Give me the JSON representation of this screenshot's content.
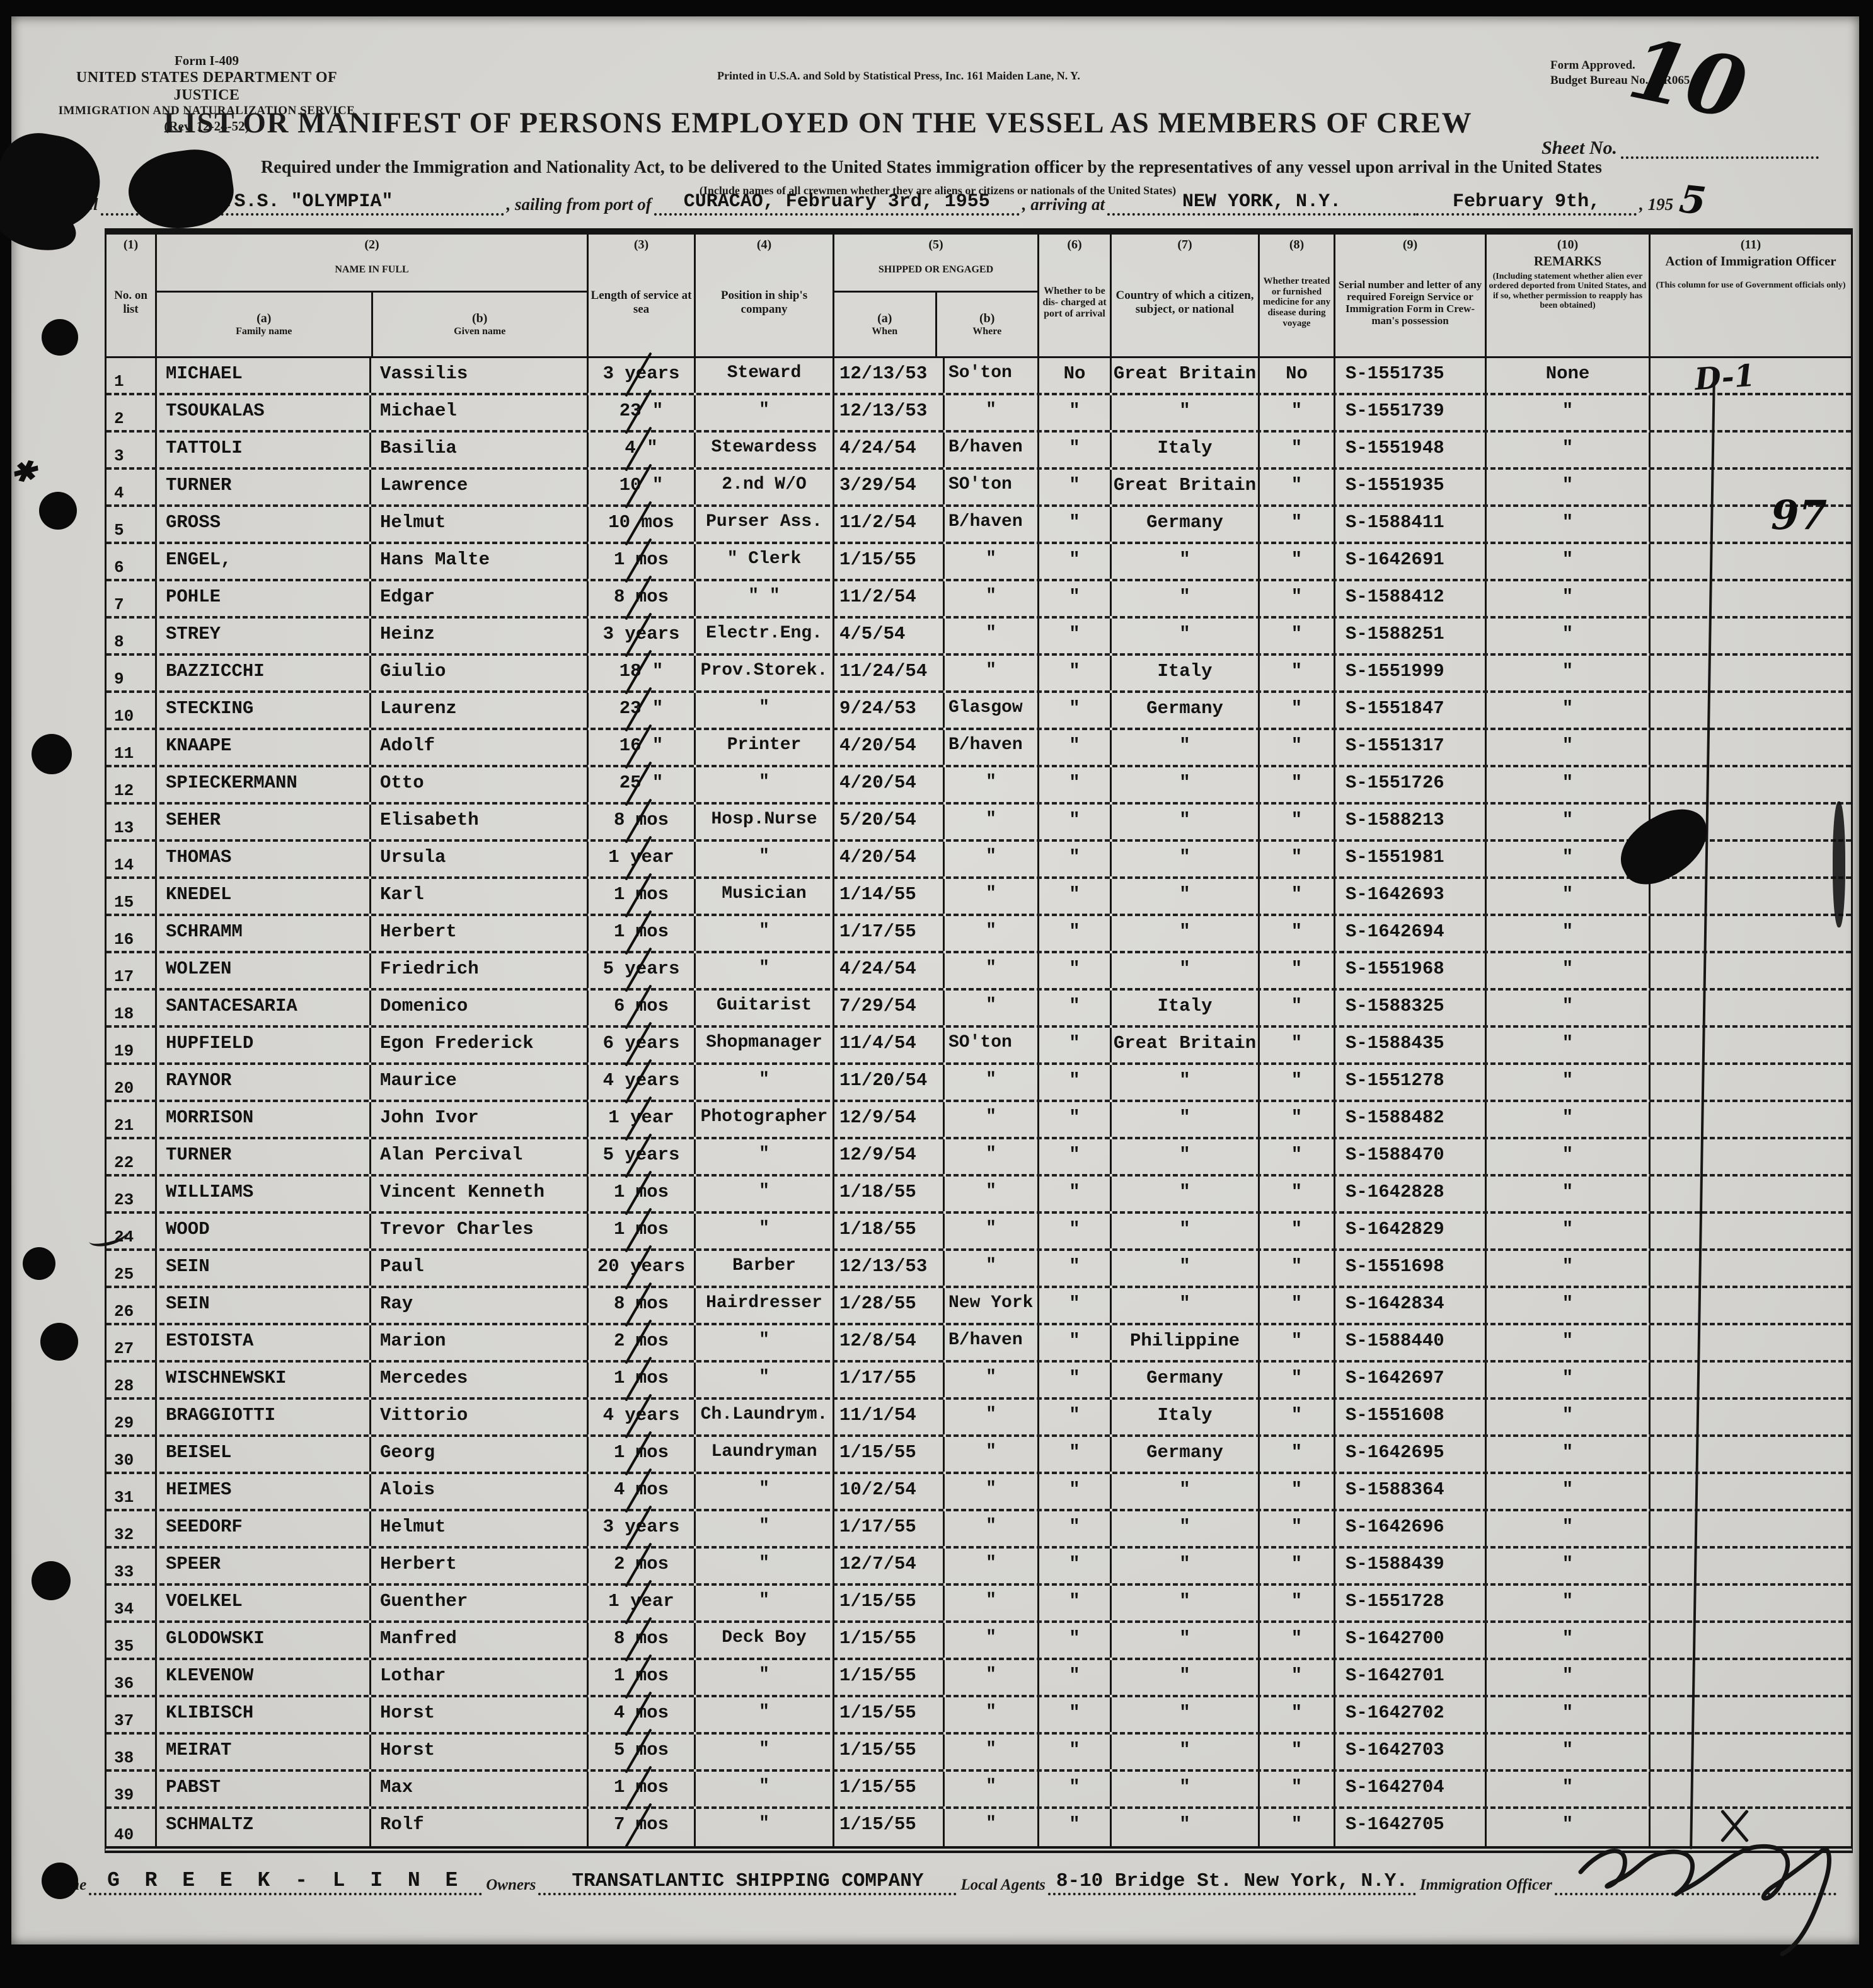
{
  "form": {
    "form_number": "Form I-409",
    "agency_line1": "UNITED STATES DEPARTMENT OF JUSTICE",
    "agency_line2": "IMMIGRATION AND NATURALIZATION SERVICE",
    "revision": "(Rev. 12-24-52)",
    "printer_note": "Printed in U.S.A. and Sold by Statistical Press, Inc. 161 Maiden Lane, N. Y.",
    "approval_line1": "Form Approved.",
    "approval_line2": "Budget Bureau No. —R065.5.",
    "title": "LIST OR MANIFEST OF PERSONS EMPLOYED ON THE VESSEL AS MEMBERS OF CREW",
    "sheet_label": "Sheet No.",
    "sheet_number": "10",
    "subtitle": "Required under the Immigration and Nationality Act, to be delivered to the United States immigration officer by the representatives of any vessel upon arrival in the United States",
    "subtitle2": "(Include names of all crewmen whether they are aliens or citizens or nationals of the United States)",
    "vessel_label": "Vessel",
    "vessel_name": "T.S.S.  \"OLYMPIA\"",
    "sailing_label": ", sailing from port of",
    "sailing_value": "CURACAO, February 3rd, 1955",
    "arriving_label": ", arriving at",
    "arriving_port": "NEW YORK,  N.Y.",
    "arriving_date": "February 9th,",
    "arriving_year_prefix": ", 195",
    "arriving_year_suffix": "5"
  },
  "table": {
    "headers": {
      "c1n": "(1)",
      "c1": "No. on list",
      "c2n": "(2)",
      "c2": "NAME IN FULL",
      "c2an": "(a)",
      "c2a": "Family name",
      "c2bn": "(b)",
      "c2b": "Given name",
      "c3n": "(3)",
      "c3": "Length of service at sea",
      "c4n": "(4)",
      "c4": "Position in ship's company",
      "c5n": "(5)",
      "c5": "SHIPPED OR ENGAGED",
      "c5an": "(a)",
      "c5a": "When",
      "c5bn": "(b)",
      "c5b": "Where",
      "c6n": "(6)",
      "c6": "Whether to be dis- charged at port of arrival",
      "c7n": "(7)",
      "c7": "Country of which a citizen, subject, or national",
      "c8n": "(8)",
      "c8": "Whether treated or furnished medicine for any disease during voyage",
      "c9n": "(9)",
      "c9": "Serial number and letter of any required Foreign Service or Immigration Form in Crew- man's possession",
      "c10n": "(10)",
      "c10": "REMARKS",
      "c10note": "(Including statement whether alien ever ordered deported from United States, and if so, whether permission to reapply has been obtained)",
      "c11n": "(11)",
      "c11": "Action of Immigration Officer",
      "c11note": "(This column for use of Government officials only)"
    },
    "rows": [
      {
        "no": "1",
        "family": "MICHAEL",
        "given": "Vassilis",
        "length": "3 years",
        "position": "Steward",
        "when": "12/13/53",
        "where": "So'ton",
        "discharged": "No",
        "country": "Great Britain",
        "medicine": "No",
        "serial": "S-1551735",
        "remarks": "None",
        "action": "D-1"
      },
      {
        "no": "2",
        "family": "TSOUKALAS",
        "given": "Michael",
        "length": "23 \"",
        "position": "\"",
        "when": "12/13/53",
        "where": "\"",
        "discharged": "\"",
        "country": "\"",
        "medicine": "\"",
        "serial": "S-1551739",
        "remarks": "\"",
        "action": ""
      },
      {
        "no": "3",
        "family": "TATTOLI",
        "given": "Basilia",
        "length": "4 \"",
        "position": "Stewardess",
        "when": "4/24/54",
        "where": "B/haven",
        "discharged": "\"",
        "country": "Italy",
        "medicine": "\"",
        "serial": "S-1551948",
        "remarks": "\"",
        "action": ""
      },
      {
        "no": "4",
        "family": "TURNER",
        "given": "Lawrence",
        "length": "10 \"",
        "position": "2.nd W/O",
        "when": "3/29/54",
        "where": "SO'ton",
        "discharged": "\"",
        "country": "Great Britain",
        "medicine": "\"",
        "serial": "S-1551935",
        "remarks": "\"",
        "action": ""
      },
      {
        "no": "5",
        "family": "GROSS",
        "given": "Helmut",
        "length": "10 mos",
        "position": "Purser Ass.",
        "when": "11/2/54",
        "where": "B/haven",
        "discharged": "\"",
        "country": "Germany",
        "medicine": "\"",
        "serial": "S-1588411",
        "remarks": "\"",
        "action": ""
      },
      {
        "no": "6",
        "family": "ENGEL,",
        "given": "Hans Malte",
        "length": "1 mos",
        "position": "\" Clerk",
        "when": "1/15/55",
        "where": "\"",
        "discharged": "\"",
        "country": "\"",
        "medicine": "\"",
        "serial": "S-1642691",
        "remarks": "\"",
        "action": ""
      },
      {
        "no": "7",
        "family": "POHLE",
        "given": "Edgar",
        "length": "8 mos",
        "position": "\"  \"",
        "when": "11/2/54",
        "where": "\"",
        "discharged": "\"",
        "country": "\"",
        "medicine": "\"",
        "serial": "S-1588412",
        "remarks": "\"",
        "action": ""
      },
      {
        "no": "8",
        "family": "STREY",
        "given": "Heinz",
        "length": "3 years",
        "position": "Electr.Eng.",
        "when": "4/5/54",
        "where": "\"",
        "discharged": "\"",
        "country": "\"",
        "medicine": "\"",
        "serial": "S-1588251",
        "remarks": "\"",
        "action": ""
      },
      {
        "no": "9",
        "family": "BAZZICCHI",
        "given": "Giulio",
        "length": "18 \"",
        "position": "Prov.Storek.",
        "when": "11/24/54",
        "where": "\"",
        "discharged": "\"",
        "country": "Italy",
        "medicine": "\"",
        "serial": "S-1551999",
        "remarks": "\"",
        "action": ""
      },
      {
        "no": "10",
        "family": "STECKING",
        "given": "Laurenz",
        "length": "23 \"",
        "position": "\"",
        "when": "9/24/53",
        "where": "Glasgow",
        "discharged": "\"",
        "country": "Germany",
        "medicine": "\"",
        "serial": "S-1551847",
        "remarks": "\"",
        "action": ""
      },
      {
        "no": "11",
        "family": "KNAAPE",
        "given": "Adolf",
        "length": "16 \"",
        "position": "Printer",
        "when": "4/20/54",
        "where": "B/haven",
        "discharged": "\"",
        "country": "\"",
        "medicine": "\"",
        "serial": "S-1551317",
        "remarks": "\"",
        "action": ""
      },
      {
        "no": "12",
        "family": "SPIECKERMANN",
        "given": "Otto",
        "length": "25 \"",
        "position": "\"",
        "when": "4/20/54",
        "where": "\"",
        "discharged": "\"",
        "country": "\"",
        "medicine": "\"",
        "serial": "S-1551726",
        "remarks": "\"",
        "action": ""
      },
      {
        "no": "13",
        "family": "SEHER",
        "given": "Elisabeth",
        "length": "8 mos",
        "position": "Hosp.Nurse",
        "when": "5/20/54",
        "where": "\"",
        "discharged": "\"",
        "country": "\"",
        "medicine": "\"",
        "serial": "S-1588213",
        "remarks": "\"",
        "action": ""
      },
      {
        "no": "14",
        "family": "THOMAS",
        "given": "Ursula",
        "length": "1 year",
        "position": "\"",
        "when": "4/20/54",
        "where": "\"",
        "discharged": "\"",
        "country": "\"",
        "medicine": "\"",
        "serial": "S-1551981",
        "remarks": "\"",
        "action": ""
      },
      {
        "no": "15",
        "family": "KNEDEL",
        "given": "Karl",
        "length": "1 mos",
        "position": "Musician",
        "when": "1/14/55",
        "where": "\"",
        "discharged": "\"",
        "country": "\"",
        "medicine": "\"",
        "serial": "S-1642693",
        "remarks": "\"",
        "action": ""
      },
      {
        "no": "16",
        "family": "SCHRAMM",
        "given": "Herbert",
        "length": "1 mos",
        "position": "\"",
        "when": "1/17/55",
        "where": "\"",
        "discharged": "\"",
        "country": "\"",
        "medicine": "\"",
        "serial": "S-1642694",
        "remarks": "\"",
        "action": ""
      },
      {
        "no": "17",
        "family": "WOLZEN",
        "given": "Friedrich",
        "length": "5 years",
        "position": "\"",
        "when": "4/24/54",
        "where": "\"",
        "discharged": "\"",
        "country": "\"",
        "medicine": "\"",
        "serial": "S-1551968",
        "remarks": "\"",
        "action": ""
      },
      {
        "no": "18",
        "family": "SANTACESARIA",
        "given": "Domenico",
        "length": "6 mos",
        "position": "Guitarist",
        "when": "7/29/54",
        "where": "\"",
        "discharged": "\"",
        "country": "Italy",
        "medicine": "\"",
        "serial": "S-1588325",
        "remarks": "\"",
        "action": ""
      },
      {
        "no": "19",
        "family": "HUPFIELD",
        "given": "Egon Frederick",
        "length": "6 years",
        "position": "Shopmanager",
        "when": "11/4/54",
        "where": "SO'ton",
        "discharged": "\"",
        "country": "Great Britain",
        "medicine": "\"",
        "serial": "S-1588435",
        "remarks": "\"",
        "action": ""
      },
      {
        "no": "20",
        "family": "RAYNOR",
        "given": "Maurice",
        "length": "4 years",
        "position": "\"",
        "when": "11/20/54",
        "where": "\"",
        "discharged": "\"",
        "country": "\"",
        "medicine": "\"",
        "serial": "S-1551278",
        "remarks": "\"",
        "action": ""
      },
      {
        "no": "21",
        "family": "MORRISON",
        "given": "John Ivor",
        "length": "1 year",
        "position": "Photographer",
        "when": "12/9/54",
        "where": "\"",
        "discharged": "\"",
        "country": "\"",
        "medicine": "\"",
        "serial": "S-1588482",
        "remarks": "\"",
        "action": ""
      },
      {
        "no": "22",
        "family": "TURNER",
        "given": "Alan Percival",
        "length": "5 years",
        "position": "\"",
        "when": "12/9/54",
        "where": "\"",
        "discharged": "\"",
        "country": "\"",
        "medicine": "\"",
        "serial": "S-1588470",
        "remarks": "\"",
        "action": ""
      },
      {
        "no": "23",
        "family": "WILLIAMS",
        "given": "Vincent Kenneth",
        "length": "1 mos",
        "position": "\"",
        "when": "1/18/55",
        "where": "\"",
        "discharged": "\"",
        "country": "\"",
        "medicine": "\"",
        "serial": "S-1642828",
        "remarks": "\"",
        "action": ""
      },
      {
        "no": "24",
        "family": "WOOD",
        "given": "Trevor Charles",
        "length": "1 mos",
        "position": "\"",
        "when": "1/18/55",
        "where": "\"",
        "discharged": "\"",
        "country": "\"",
        "medicine": "\"",
        "serial": "S-1642829",
        "remarks": "\"",
        "action": ""
      },
      {
        "no": "25",
        "family": "SEIN",
        "given": "Paul",
        "length": "20 years",
        "position": "Barber",
        "when": "12/13/53",
        "where": "\"",
        "discharged": "\"",
        "country": "\"",
        "medicine": "\"",
        "serial": "S-1551698",
        "remarks": "\"",
        "action": ""
      },
      {
        "no": "26",
        "family": "SEIN",
        "given": "Ray",
        "length": "8 mos",
        "position": "Hairdresser",
        "when": "1/28/55",
        "where": "New York",
        "discharged": "\"",
        "country": "\"",
        "medicine": "\"",
        "serial": "S-1642834",
        "remarks": "\"",
        "action": ""
      },
      {
        "no": "27",
        "family": "ESTOISTA",
        "given": "Marion",
        "length": "2 mos",
        "position": "\"",
        "when": "12/8/54",
        "where": "B/haven",
        "discharged": "\"",
        "country": "Philippine",
        "medicine": "\"",
        "serial": "S-1588440",
        "remarks": "\"",
        "action": ""
      },
      {
        "no": "28",
        "family": "WISCHNEWSKI",
        "given": "Mercedes",
        "length": "1 mos",
        "position": "\"",
        "when": "1/17/55",
        "where": "\"",
        "discharged": "\"",
        "country": "Germany",
        "medicine": "\"",
        "serial": "S-1642697",
        "remarks": "\"",
        "action": ""
      },
      {
        "no": "29",
        "family": "BRAGGIOTTI",
        "given": "Vittorio",
        "length": "4 years",
        "position": "Ch.Laundrym.",
        "when": "11/1/54",
        "where": "\"",
        "discharged": "\"",
        "country": "Italy",
        "medicine": "\"",
        "serial": "S-1551608",
        "remarks": "\"",
        "action": ""
      },
      {
        "no": "30",
        "family": "BEISEL",
        "given": "Georg",
        "length": "1 mos",
        "position": "Laundryman",
        "when": "1/15/55",
        "where": "\"",
        "discharged": "\"",
        "country": "Germany",
        "medicine": "\"",
        "serial": "S-1642695",
        "remarks": "\"",
        "action": ""
      },
      {
        "no": "31",
        "family": "HEIMES",
        "given": "Alois",
        "length": "4 mos",
        "position": "\"",
        "when": "10/2/54",
        "where": "\"",
        "discharged": "\"",
        "country": "\"",
        "medicine": "\"",
        "serial": "S-1588364",
        "remarks": "\"",
        "action": ""
      },
      {
        "no": "32",
        "family": "SEEDORF",
        "given": "Helmut",
        "length": "3 years",
        "position": "\"",
        "when": "1/17/55",
        "where": "\"",
        "discharged": "\"",
        "country": "\"",
        "medicine": "\"",
        "serial": "S-1642696",
        "remarks": "\"",
        "action": ""
      },
      {
        "no": "33",
        "family": "SPEER",
        "given": "Herbert",
        "length": "2 mos",
        "position": "\"",
        "when": "12/7/54",
        "where": "\"",
        "discharged": "\"",
        "country": "\"",
        "medicine": "\"",
        "serial": "S-1588439",
        "remarks": "\"",
        "action": ""
      },
      {
        "no": "34",
        "family": "VOELKEL",
        "given": "Guenther",
        "length": "1 year",
        "position": "\"",
        "when": "1/15/55",
        "where": "\"",
        "discharged": "\"",
        "country": "\"",
        "medicine": "\"",
        "serial": "S-1551728",
        "remarks": "\"",
        "action": ""
      },
      {
        "no": "35",
        "family": "GLODOWSKI",
        "given": "Manfred",
        "length": "8 mos",
        "position": "Deck Boy",
        "when": "1/15/55",
        "where": "\"",
        "discharged": "\"",
        "country": "\"",
        "medicine": "\"",
        "serial": "S-1642700",
        "remarks": "\"",
        "action": ""
      },
      {
        "no": "36",
        "family": "KLEVENOW",
        "given": "Lothar",
        "length": "1 mos",
        "position": "\"",
        "when": "1/15/55",
        "where": "\"",
        "discharged": "\"",
        "country": "\"",
        "medicine": "\"",
        "serial": "S-1642701",
        "remarks": "\"",
        "action": ""
      },
      {
        "no": "37",
        "family": "KLIBISCH",
        "given": "Horst",
        "length": "4 mos",
        "position": "\"",
        "when": "1/15/55",
        "where": "\"",
        "discharged": "\"",
        "country": "\"",
        "medicine": "\"",
        "serial": "S-1642702",
        "remarks": "\"",
        "action": ""
      },
      {
        "no": "38",
        "family": "MEIRAT",
        "given": "Horst",
        "length": "5 mos",
        "position": "\"",
        "when": "1/15/55",
        "where": "\"",
        "discharged": "\"",
        "country": "\"",
        "medicine": "\"",
        "serial": "S-1642703",
        "remarks": "\"",
        "action": ""
      },
      {
        "no": "39",
        "family": "PABST",
        "given": "Max",
        "length": "1 mos",
        "position": "\"",
        "when": "1/15/55",
        "where": "\"",
        "discharged": "\"",
        "country": "\"",
        "medicine": "\"",
        "serial": "S-1642704",
        "remarks": "\"",
        "action": ""
      },
      {
        "no": "40",
        "family": "SCHMALTZ",
        "given": "Rolf",
        "length": "7 mos",
        "position": "\"",
        "when": "1/15/55",
        "where": "\"",
        "discharged": "\"",
        "country": "\"",
        "medicine": "\"",
        "serial": "S-1642705",
        "remarks": "\"",
        "action": ""
      }
    ]
  },
  "footer": {
    "line_label": "Line",
    "line_value": "G R E E K - L I N E",
    "owners_label": "Owners",
    "owners_value": "TRANSATLANTIC SHIPPING COMPANY",
    "agents_label": "Local Agents",
    "agents_value": "8-10 Bridge St. New York, N.Y.",
    "officer_label": "Immigration Officer"
  },
  "annotations": {
    "page_mark": "97"
  }
}
